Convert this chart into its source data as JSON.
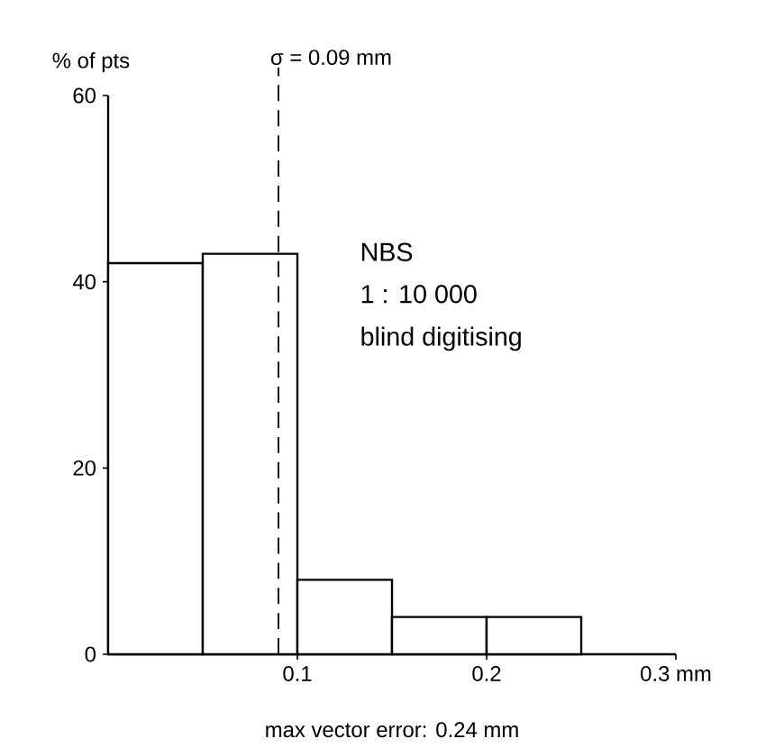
{
  "chart_data": {
    "type": "histogram",
    "bins": [
      0,
      0.05,
      0.1,
      0.15,
      0.2,
      0.25
    ],
    "values": [
      42,
      43,
      8,
      4,
      4
    ],
    "color": "#ffffff",
    "ylabel": "% of pts",
    "xlim": [
      0,
      0.3
    ],
    "ylim": [
      0,
      60
    ],
    "xticks": [
      0.1,
      0.2,
      {
        "value": 0.3,
        "label": "0.3 mm"
      }
    ],
    "yticks": [
      0,
      20,
      40,
      60
    ],
    "ref_lines": [
      {
        "axis": "x",
        "value": 0.09,
        "label": "σ = 0.09 mm",
        "line_style": "dashed"
      }
    ],
    "annotations": [
      "NBS",
      "1 : 10 000",
      "blind digitising",
      "max vector error: 0.24 mm"
    ],
    "grid": false
  }
}
